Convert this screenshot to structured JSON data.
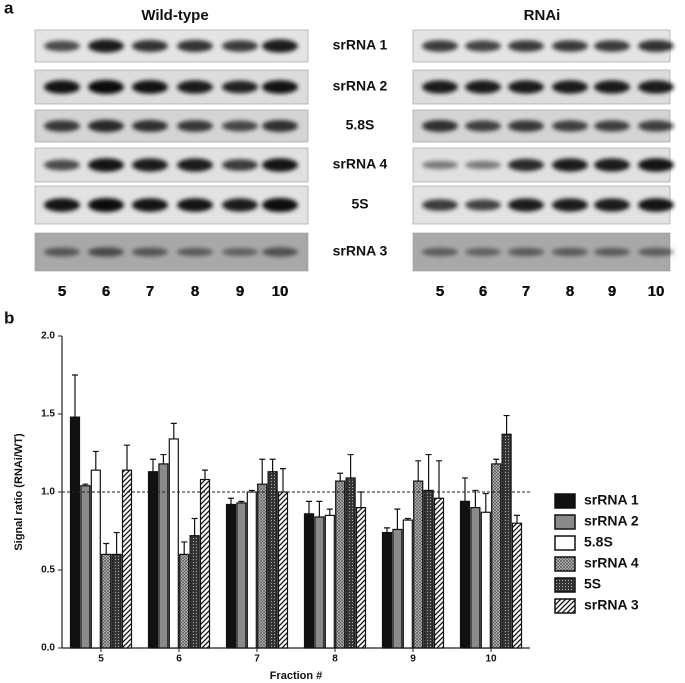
{
  "panel_a": {
    "label": "a",
    "titles": [
      "Wild-type",
      "RNAi"
    ],
    "rows": [
      "srRNA 1",
      "srRNA 2",
      "5.8S",
      "srRNA 4",
      "5S",
      "srRNA 3"
    ],
    "lanes": [
      "5",
      "6",
      "7",
      "8",
      "9",
      "10"
    ]
  },
  "chart_data": {
    "type": "bar",
    "panel_label": "b",
    "ylabel": "Signal ratio (RNAi/WT)",
    "xlabel": "Fraction #",
    "categories": [
      "5",
      "6",
      "7",
      "8",
      "9",
      "10"
    ],
    "ylim": [
      0,
      2
    ],
    "yticks": [
      {
        "value": 0,
        "label": "0.0"
      },
      {
        "value": 0.5,
        "label": "0.5"
      },
      {
        "value": 1,
        "label": "1.0"
      },
      {
        "value": 1.5,
        "label": "1.5"
      },
      {
        "value": 2,
        "label": "2.0"
      }
    ],
    "hline": 1,
    "series": [
      {
        "name": "srRNA 1",
        "color": "#111111",
        "pattern": "solid",
        "values": [
          1.48,
          1.13,
          0.92,
          0.86,
          0.74,
          0.94
        ],
        "errors": [
          0.27,
          0.08,
          0.04,
          0.08,
          0.03,
          0.15
        ]
      },
      {
        "name": "srRNA 2",
        "color": "#8a8a8a",
        "pattern": "solid",
        "values": [
          1.04,
          1.18,
          0.93,
          0.84,
          0.76,
          0.9
        ],
        "errors": [
          0.01,
          0.06,
          0.01,
          0.1,
          0.13,
          0.11
        ]
      },
      {
        "name": "5.8S",
        "color": "#ffffff",
        "pattern": "solid",
        "values": [
          1.14,
          1.34,
          1.0,
          0.85,
          0.82,
          0.87
        ],
        "errors": [
          0.12,
          0.1,
          0.01,
          0.04,
          0.01,
          0.12
        ]
      },
      {
        "name": "srRNA 4",
        "color": "#b0b0b0",
        "pattern": "cross",
        "values": [
          0.6,
          0.6,
          1.05,
          1.07,
          1.07,
          1.18
        ],
        "errors": [
          0.07,
          0.08,
          0.16,
          0.05,
          0.13,
          0.03
        ]
      },
      {
        "name": "5S",
        "color": "#333333",
        "pattern": "dots",
        "values": [
          0.6,
          0.72,
          1.13,
          1.09,
          1.01,
          1.37
        ],
        "errors": [
          0.14,
          0.11,
          0.08,
          0.15,
          0.23,
          0.12
        ]
      },
      {
        "name": "srRNA 3",
        "color": "#ffffff",
        "pattern": "diagonal",
        "values": [
          1.14,
          1.08,
          1.0,
          0.9,
          0.96,
          0.8
        ],
        "errors": [
          0.16,
          0.06,
          0.15,
          0.1,
          0.24,
          0.05
        ]
      }
    ]
  }
}
